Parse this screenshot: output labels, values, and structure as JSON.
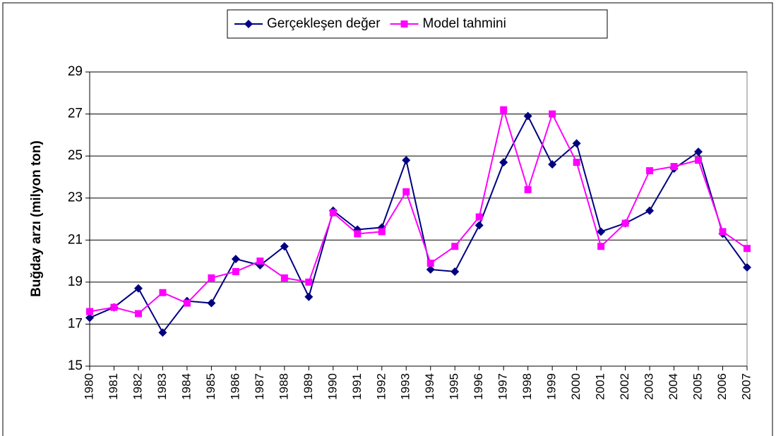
{
  "chart_data": {
    "type": "line",
    "y_label": "Buğday arzı (milyon ton)",
    "categories": [
      "1980",
      "1981",
      "1982",
      "1983",
      "1984",
      "1985",
      "1986",
      "1987",
      "1988",
      "1989",
      "1990",
      "1991",
      "1992",
      "1993",
      "1994",
      "1995",
      "1996",
      "1997",
      "1998",
      "1999",
      "2000",
      "2001",
      "2002",
      "2003",
      "2004",
      "2005",
      "2006",
      "2007"
    ],
    "series": [
      {
        "name": "Gerçekleşen değer",
        "color": "#000080",
        "marker": "diamond",
        "values": [
          17.3,
          17.8,
          18.7,
          16.6,
          18.1,
          18.0,
          20.1,
          19.8,
          20.7,
          18.3,
          22.4,
          21.5,
          21.6,
          24.8,
          19.6,
          19.5,
          21.7,
          24.7,
          26.9,
          24.6,
          25.6,
          21.4,
          21.8,
          22.4,
          24.4,
          25.2,
          21.3,
          19.7
        ]
      },
      {
        "name": "Model tahmini",
        "color": "#ff00ff",
        "marker": "square",
        "values": [
          17.6,
          17.8,
          17.5,
          18.5,
          18.0,
          19.2,
          19.5,
          20.0,
          19.2,
          19.0,
          22.3,
          21.3,
          21.4,
          23.3,
          19.9,
          20.7,
          22.1,
          27.2,
          23.4,
          27.0,
          24.7,
          20.7,
          21.8,
          24.3,
          24.5,
          24.8,
          21.4,
          20.6
        ]
      }
    ],
    "ylim": [
      15,
      29
    ],
    "yticks": [
      15,
      17,
      19,
      21,
      23,
      25,
      27,
      29
    ],
    "grid": true,
    "legend": "top"
  }
}
